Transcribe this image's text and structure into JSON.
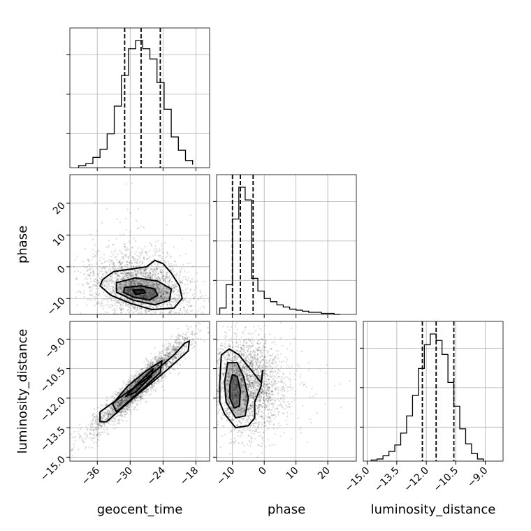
{
  "chart_data": {
    "type": "corner",
    "parameters": [
      "geocent_time",
      "phase",
      "luminosity_distance"
    ],
    "ranges": {
      "geocent_time": [
        -41.0,
        -15.5
      ],
      "phase": [
        -15.0,
        29.0
      ],
      "luminosity_distance": [
        -15.2,
        -8.1
      ]
    },
    "ticks": {
      "geocent_time": [
        -36,
        -30,
        -24,
        -18
      ],
      "phase": [
        -10,
        0,
        10,
        20
      ],
      "luminosity_distance": [
        -15.0,
        -13.5,
        -12.0,
        -10.5,
        -9.0
      ]
    },
    "tick_labels": {
      "geocent_time": [
        "−36",
        "−30",
        "−24",
        "−18"
      ],
      "phase": [
        "−10",
        "0",
        "10",
        "20"
      ],
      "luminosity_distance": [
        "−15.0",
        "−13.5",
        "−12.0",
        "−10.5",
        "−9.0"
      ]
    },
    "quantiles": {
      "geocent_time": [
        -31.0,
        -28.0,
        -24.5
      ],
      "phase": [
        -10.0,
        -7.5,
        -3.5
      ],
      "luminosity_distance": [
        -12.2,
        -11.5,
        -10.6
      ]
    },
    "histograms": {
      "geocent_time": {
        "edges": [
          -39.4,
          -38.1,
          -36.8,
          -35.5,
          -34.2,
          -32.9,
          -31.6,
          -30.3,
          -29.0,
          -27.7,
          -26.4,
          -25.1,
          -23.8,
          -22.5,
          -21.2,
          -19.9,
          -18.6
        ],
        "counts": [
          2,
          4,
          10,
          18,
          33,
          60,
          90,
          116,
          124,
          116,
          106,
          83,
          57,
          30,
          17,
          7,
          3
        ]
      },
      "phase": {
        "edges": [
          -14,
          -12,
          -10,
          -8,
          -6,
          -4,
          -2,
          0,
          2,
          4,
          6,
          8,
          10,
          12,
          14,
          16,
          18,
          20,
          22,
          24
        ],
        "counts": [
          6,
          28,
          90,
          120,
          108,
          34,
          22,
          15,
          12,
          9,
          7,
          5,
          4,
          3,
          2,
          2,
          1,
          1,
          0,
          0
        ]
      },
      "luminosity_distance": {
        "edges": [
          -14.8,
          -14.5,
          -14.2,
          -13.9,
          -13.6,
          -13.3,
          -13.0,
          -12.7,
          -12.4,
          -12.1,
          -11.8,
          -11.5,
          -11.2,
          -10.9,
          -10.6,
          -10.3,
          -10.0,
          -9.7,
          -9.4,
          -9.1
        ],
        "counts": [
          1,
          2,
          5,
          9,
          15,
          26,
          42,
          61,
          86,
          108,
          118,
          112,
          99,
          73,
          51,
          30,
          16,
          7,
          2
        ]
      }
    },
    "pairs": [
      {
        "x": "geocent_time",
        "y": "phase",
        "n_samples": 2600,
        "mean": [
          -28.0,
          -7.0
        ],
        "sd": [
          4.5,
          5.0
        ],
        "rho": -0.28,
        "contours": [
          [
            [
              -35,
              -4
            ],
            [
              -33,
              -1.5
            ],
            [
              -29,
              -0.5
            ],
            [
              -27,
              0
            ],
            [
              -25.5,
              2
            ],
            [
              -24,
              1
            ],
            [
              -22.5,
              -2
            ],
            [
              -21,
              -6
            ],
            [
              -20.5,
              -10
            ],
            [
              -22,
              -13
            ],
            [
              -26,
              -13.5
            ],
            [
              -30,
              -11.5
            ],
            [
              -33.5,
              -9
            ],
            [
              -35.5,
              -6
            ]
          ],
          [
            [
              -32.5,
              -5
            ],
            [
              -29,
              -3.5
            ],
            [
              -25,
              -4.5
            ],
            [
              -22.5,
              -7
            ],
            [
              -22.8,
              -10.5
            ],
            [
              -25.5,
              -12
            ],
            [
              -29.5,
              -10.5
            ],
            [
              -32.5,
              -8
            ]
          ],
          [
            [
              -31,
              -6.5
            ],
            [
              -28,
              -6
            ],
            [
              -25.5,
              -7
            ],
            [
              -25,
              -9
            ],
            [
              -26.5,
              -10.5
            ],
            [
              -29.5,
              -9.5
            ],
            [
              -31.2,
              -8
            ]
          ],
          [
            [
              -29.5,
              -7.3
            ],
            [
              -27.5,
              -7.3
            ],
            [
              -27.2,
              -8.2
            ],
            [
              -29,
              -8.7
            ]
          ]
        ]
      },
      {
        "x": "geocent_time",
        "y": "luminosity_distance",
        "n_samples": 2600,
        "mean": [
          -28.0,
          -11.3
        ],
        "sd": [
          4.5,
          1.2
        ],
        "rho": 0.95,
        "contours": [
          [
            [
              -35.5,
              -13.2
            ],
            [
              -35.5,
              -12.7
            ],
            [
              -27,
              -11.0
            ],
            [
              -22,
              -9.8
            ],
            [
              -20,
              -9.2
            ],
            [
              -19.2,
              -9.1
            ],
            [
              -19.4,
              -9.6
            ],
            [
              -23,
              -10.5
            ],
            [
              -29,
              -11.9
            ],
            [
              -34.3,
              -13.2
            ]
          ],
          [
            [
              -33.2,
              -12.3
            ],
            [
              -30.5,
              -11.4
            ],
            [
              -27,
              -10.6
            ],
            [
              -24.2,
              -10.1
            ],
            [
              -24.5,
              -10.7
            ],
            [
              -28,
              -11.6
            ],
            [
              -32.5,
              -12.7
            ]
          ],
          [
            [
              -30.8,
              -11.9
            ],
            [
              -28,
              -11.1
            ],
            [
              -25.8,
              -10.5
            ],
            [
              -26.2,
              -10.9
            ],
            [
              -29,
              -11.7
            ]
          ]
        ]
      },
      {
        "x": "phase",
        "y": "luminosity_distance",
        "n_samples": 2600,
        "mean": [
          -6.0,
          -11.3
        ],
        "sd": [
          5.5,
          1.2
        ],
        "rho": 0.0,
        "contours": [
          [
            [
              -14,
              -11.2
            ],
            [
              -13.5,
              -9.8
            ],
            [
              -11,
              -9.5
            ],
            [
              -8,
              -9.8
            ],
            [
              -4,
              -10.6
            ],
            [
              -1,
              -11.2
            ],
            [
              -0.5,
              -10.6
            ],
            [
              -1,
              -11.4
            ],
            [
              -3,
              -12.2
            ],
            [
              -3,
              -13.0
            ],
            [
              -5,
              -13.4
            ],
            [
              -9,
              -13.5
            ],
            [
              -12.5,
              -12.8
            ],
            [
              -14,
              -12.2
            ]
          ],
          [
            [
              -12.5,
              -11.2
            ],
            [
              -11.5,
              -10.2
            ],
            [
              -8.5,
              -10.2
            ],
            [
              -6.5,
              -10.9
            ],
            [
              -5,
              -12.0
            ],
            [
              -6,
              -12.9
            ],
            [
              -9,
              -13.0
            ],
            [
              -12,
              -12.2
            ]
          ],
          [
            [
              -10.8,
              -11.3
            ],
            [
              -10,
              -10.8
            ],
            [
              -8.5,
              -10.9
            ],
            [
              -7.5,
              -11.6
            ],
            [
              -7.8,
              -12.4
            ],
            [
              -9.5,
              -12.5
            ],
            [
              -10.8,
              -12.0
            ]
          ]
        ]
      }
    ]
  }
}
